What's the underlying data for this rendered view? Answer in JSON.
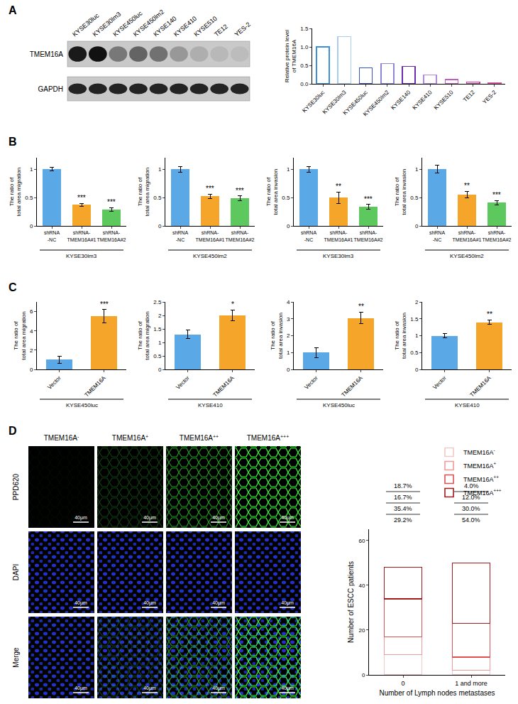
{
  "panel_labels": [
    "A",
    "B",
    "C",
    "D"
  ],
  "blot": {
    "lanes": [
      "KYSE30luc",
      "KYSE30lm3",
      "KYSE450luc",
      "KYSE450lm2",
      "KYSE140",
      "KYSE410",
      "KYSE510",
      "TE12",
      "YES-2"
    ],
    "rows": [
      "TMEM16A",
      "GAPDH"
    ]
  },
  "images": {
    "columns": [
      "TMEM16A-",
      "TMEM16A+",
      "TMEM16A++",
      "TMEM16A+++"
    ],
    "rows": [
      "PPD620",
      "DAPI",
      "Merge"
    ],
    "scale_bar": "40μm"
  },
  "chart_data": [
    {
      "type": "bar",
      "y_label": "Relative protein level\nof TMEM16A",
      "categories": [
        "KYSE30luc",
        "KYSE30lm3",
        "KYSE450luc",
        "KYSE450lm2",
        "KYSE140",
        "KYSE410",
        "KYSE510",
        "TE12",
        "YES-2"
      ],
      "values": [
        1.0,
        1.28,
        0.43,
        0.55,
        0.47,
        0.24,
        0.11,
        0.05,
        0.02
      ],
      "colors": [
        "#3d8fd8",
        "#a9cdf0",
        "#3552c8",
        "#8c86d8",
        "#6a2db0",
        "#b486dc",
        "#c35bc6",
        "#c93aa0",
        "#d8509a"
      ],
      "marker": "outline",
      "ylim": [
        0,
        1.5
      ],
      "yticks": [
        {
          "value": 0,
          "label": "0.0"
        },
        {
          "value": 0.5,
          "label": "0.5"
        },
        {
          "value": 1,
          "label": "1.0"
        },
        {
          "value": 1.5,
          "label": "1.5"
        }
      ],
      "grid": false
    },
    {
      "type": "bar",
      "y_label": "The ratio of\ntotal area migration",
      "categories": [
        "shRNA\n-NC",
        "shRNA-\nTMEM16A#1",
        "shRNA-\nTMEM16A#2"
      ],
      "values": [
        1.0,
        0.37,
        0.29
      ],
      "errors": [
        0.03,
        0.03,
        0.03
      ],
      "significance": [
        null,
        "***",
        "***"
      ],
      "colors": [
        "#5aa9e6",
        "#f5a52a",
        "#5dc85d"
      ],
      "ylim": [
        0,
        1.2
      ],
      "yticks": [
        0,
        0.5,
        1
      ],
      "group_label": "KYSE30lm3",
      "grid": false
    },
    {
      "type": "bar",
      "y_label": "The ratio of\ntotal area migration",
      "categories": [
        "shRNA\n-NC",
        "shRNA-\nTMEM16A#1",
        "shRNA-\nTMEM16A#2"
      ],
      "values": [
        1.0,
        0.52,
        0.49
      ],
      "errors": [
        0.05,
        0.04,
        0.04
      ],
      "significance": [
        null,
        "***",
        "***"
      ],
      "colors": [
        "#5aa9e6",
        "#f5a52a",
        "#5dc85d"
      ],
      "ylim": [
        0,
        1.2
      ],
      "yticks": [
        0,
        0.5,
        1
      ],
      "group_label": "KYSE450lm2",
      "grid": false
    },
    {
      "type": "bar",
      "y_label": "The ratio of\ntotal area invasion",
      "categories": [
        "shRNA\n-NC",
        "shRNA-\nTMEM16A#1",
        "shRNA-\nTMEM16A#2"
      ],
      "values": [
        1.0,
        0.5,
        0.34
      ],
      "errors": [
        0.05,
        0.1,
        0.04
      ],
      "significance": [
        null,
        "**",
        "***"
      ],
      "colors": [
        "#5aa9e6",
        "#f5a52a",
        "#5dc85d"
      ],
      "ylim": [
        0,
        1.2
      ],
      "yticks": [
        0,
        0.5,
        1
      ],
      "group_label": "KYSE30lm3",
      "grid": false
    },
    {
      "type": "bar",
      "y_label": "The ratio of\ntotal area invasion",
      "categories": [
        "shRNA\n-NC",
        "shRNA-\nTMEM16A#1",
        "shRNA-\nTMEM16A#2"
      ],
      "values": [
        1.0,
        0.55,
        0.41
      ],
      "errors": [
        0.07,
        0.06,
        0.04
      ],
      "significance": [
        null,
        "**",
        "***"
      ],
      "colors": [
        "#5aa9e6",
        "#f5a52a",
        "#5dc85d"
      ],
      "ylim": [
        0,
        1.2
      ],
      "yticks": [
        0,
        0.5,
        1
      ],
      "group_label": "KYSE450lm2",
      "grid": false
    },
    {
      "type": "bar",
      "y_label": "The ratio of\ntotal area migration",
      "categories": [
        "Vector",
        "TMEM16A"
      ],
      "values": [
        1.0,
        5.5
      ],
      "errors": [
        0.35,
        0.7
      ],
      "significance": [
        null,
        "***"
      ],
      "colors": [
        "#5aa9e6",
        "#f5a52a"
      ],
      "ylim": [
        0,
        7
      ],
      "yticks": [
        0,
        2,
        4,
        6
      ],
      "group_label": "KYSE450luc",
      "grid": false
    },
    {
      "type": "bar",
      "y_label": "The ratio of\ntotal area migration",
      "categories": [
        "Vector",
        "TMEM16A"
      ],
      "values": [
        1.3,
        2.0
      ],
      "errors": [
        0.15,
        0.2
      ],
      "significance": [
        null,
        "*"
      ],
      "colors": [
        "#5aa9e6",
        "#f5a52a"
      ],
      "ylim": [
        0,
        2.5
      ],
      "yticks": [
        0,
        0.5,
        1,
        1.5,
        2,
        2.5
      ],
      "group_label": "KYSE410",
      "grid": false
    },
    {
      "type": "bar",
      "y_label": "The ratio of\ntotal area invasion",
      "categories": [
        "Vector",
        "TMEM16A"
      ],
      "values": [
        1.0,
        3.05
      ],
      "errors": [
        0.3,
        0.35
      ],
      "significance": [
        null,
        "**"
      ],
      "colors": [
        "#5aa9e6",
        "#f5a52a"
      ],
      "ylim": [
        0,
        4
      ],
      "yticks": [
        0,
        1,
        2,
        3,
        4
      ],
      "group_label": "KYSE450luc",
      "grid": false
    },
    {
      "type": "bar",
      "y_label": "The ratio of\ntotal area invasion",
      "categories": [
        "Vector",
        "TMEM16A"
      ],
      "values": [
        1.0,
        1.4
      ],
      "errors": [
        0.06,
        0.07
      ],
      "significance": [
        null,
        "**"
      ],
      "colors": [
        "#5aa9e6",
        "#f5a52a"
      ],
      "ylim": [
        0,
        2
      ],
      "yticks": [
        0,
        0.5,
        1,
        1.5,
        2
      ],
      "group_label": "KYSE410",
      "grid": false
    },
    {
      "type": "bar",
      "stacked": true,
      "marker": "outline",
      "x_label": "Number of Lymph nodes metastases",
      "y_label": "Number of ESCC patients",
      "categories": [
        "0",
        "1 and more"
      ],
      "series": [
        {
          "name": "TMEM16A-",
          "color": "#f4c9c9",
          "values": [
            9,
            2
          ],
          "percent_labels": [
            "18.7%",
            "4.0%"
          ]
        },
        {
          "name": "TMEM16A+",
          "color": "#ee9b9b",
          "values": [
            8,
            6
          ],
          "percent_labels": [
            "16.7%",
            "12.0%"
          ]
        },
        {
          "name": "TMEM16A++",
          "color": "#e05050",
          "values": [
            17,
            15
          ],
          "percent_labels": [
            "35.4%",
            "30.0%"
          ]
        },
        {
          "name": "TMEM16A+++",
          "color": "#a31a1a",
          "values": [
            14,
            27
          ],
          "percent_labels": [
            "29.2%",
            "54.0%"
          ]
        }
      ],
      "ylim": [
        0,
        65
      ],
      "yticks": [
        0,
        20,
        40,
        60
      ],
      "legend": "top right",
      "grid": false
    }
  ]
}
